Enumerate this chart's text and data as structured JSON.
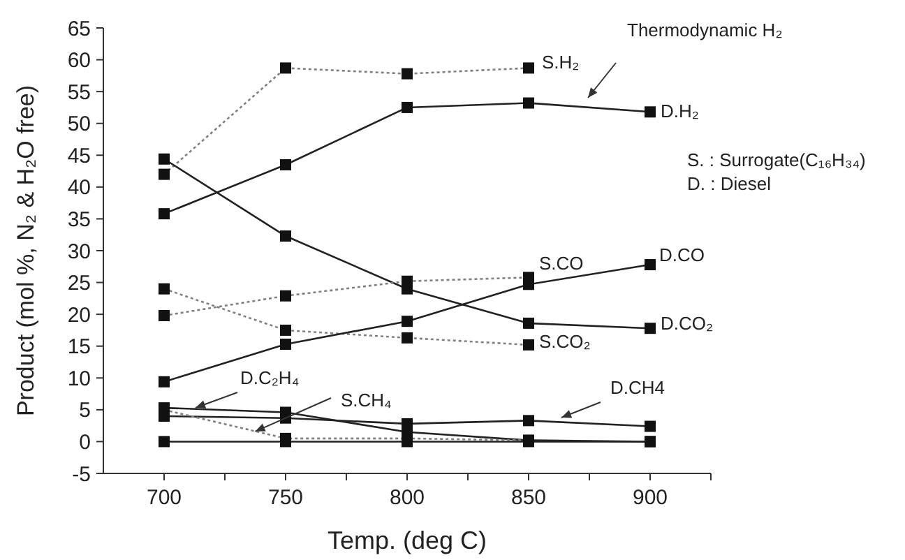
{
  "chart_data": {
    "type": "line",
    "xlabel": "Temp. (deg C)",
    "ylabel": "Product (mol %, N₂ & H₂O free)",
    "x": [
      700,
      750,
      800,
      850,
      900
    ],
    "series": [
      {
        "color": "#808080",
        "line_style": "dotted",
        "values": [
          42,
          58.7,
          57.8,
          58.7,
          null
        ]
      },
      {
        "color": "#222222",
        "line_style": "solid",
        "values": [
          35.8,
          43.5,
          52.5,
          53.2,
          51.8
        ]
      },
      {
        "color": "#222222",
        "line_style": "solid",
        "values": [
          44.4,
          32.3,
          24,
          18.6,
          17.8
        ]
      },
      {
        "color": "#808080",
        "line_style": "dotted",
        "values": [
          24,
          17.5,
          16.3,
          15.2,
          null
        ]
      },
      {
        "color": "#808080",
        "line_style": "dotted",
        "values": [
          19.8,
          22.9,
          25.2,
          25.8,
          null
        ]
      },
      {
        "color": "#222222",
        "line_style": "solid",
        "values": [
          9.4,
          15.3,
          18.9,
          24.7,
          27.8
        ]
      },
      {
        "color": "#222222",
        "line_style": "solid",
        "values": [
          4,
          3.7,
          2.8,
          3.3,
          2.4
        ]
      },
      {
        "color": "#222222",
        "line_style": "solid",
        "values": [
          5.3,
          4.6,
          1.5,
          0.2,
          0
        ]
      },
      {
        "color": "#808080",
        "line_style": "dotted",
        "values": [
          5,
          0.5,
          0.5,
          0.2,
          null
        ]
      },
      {
        "color": "#222222",
        "line_style": "solid",
        "values": [
          0,
          0,
          0,
          0,
          0
        ]
      }
    ],
    "marker": "square",
    "grid": false,
    "xlim": [
      675,
      925
    ],
    "xticks": [
      700,
      {
        "value": 725,
        "label": null
      },
      750,
      {
        "value": 775,
        "label": null
      },
      800,
      {
        "value": 825,
        "label": null
      },
      850,
      {
        "value": 875,
        "label": null
      },
      900,
      {
        "value": 925,
        "label": null
      }
    ],
    "ylim": [
      -5,
      65
    ],
    "yticks": [
      -5,
      0,
      5,
      10,
      15,
      20,
      25,
      30,
      35,
      40,
      45,
      50,
      55,
      60,
      65
    ],
    "annotations": [
      "Thermodynamic H₂",
      "S.H₂",
      "D.H₂",
      "S. : Surrogate(C₁₆H₃₄)",
      "D. : Diesel",
      "S.CO",
      "D.CO",
      "D.CO₂",
      "S.CO₂",
      "D.CH4",
      "D.C₂H₄",
      {
        "text": "S.CH₄",
        "x": 737.5,
        "y": 1.6
      }
    ]
  }
}
